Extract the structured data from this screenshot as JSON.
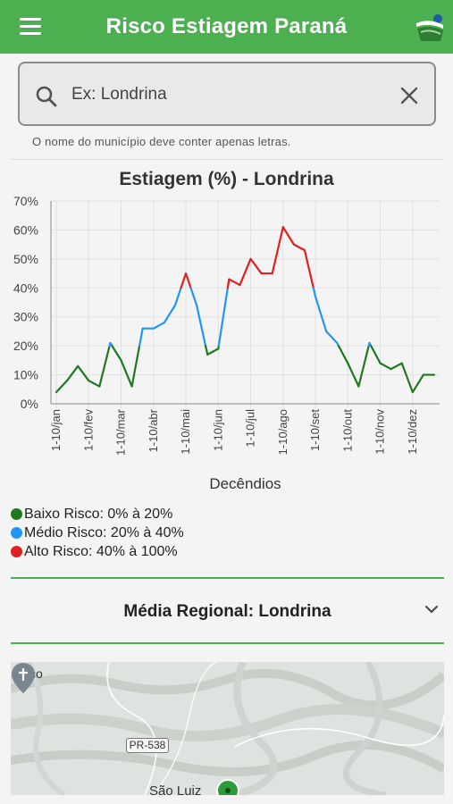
{
  "app": {
    "title": "Risco Estiagem Paraná"
  },
  "search": {
    "placeholder": "Ex: Londrina",
    "hint": "O nome do município deve conter apenas letras."
  },
  "chart_data": {
    "type": "line",
    "title": "Estiagem (%) - Londrina",
    "xlabel": "Decêndios",
    "ylabel": "",
    "ylim": [
      0,
      70
    ],
    "yticks": [
      "0%",
      "10%",
      "20%",
      "30%",
      "40%",
      "50%",
      "60%",
      "70%"
    ],
    "x_tick_labels": [
      "1-10/jan",
      "1-10/fev",
      "1-10/mar",
      "1-10/abr",
      "1-10/mai",
      "1-10/jun",
      "1-10/jul",
      "1-10/ago",
      "1-10/set",
      "1-10/out",
      "1-10/nov",
      "1-10/dez"
    ],
    "values": [
      4,
      8,
      13,
      8,
      6,
      21,
      15,
      6,
      26,
      26,
      28,
      34,
      45,
      34,
      17,
      19,
      43,
      41,
      50,
      45,
      45,
      61,
      55,
      53,
      37,
      25,
      21,
      14,
      6,
      21,
      14,
      12,
      14,
      4,
      10,
      10
    ],
    "risk_bands": [
      {
        "label": "Baixo Risco: 0% à 20%",
        "color": "#1f7a1f",
        "min": 0,
        "max": 20
      },
      {
        "label": "Médio Risco: 20% à 40%",
        "color": "#2196f3",
        "min": 20,
        "max": 40
      },
      {
        "label": "Alto Risco: 40% à 100%",
        "color": "#e02020",
        "min": 40,
        "max": 100
      }
    ],
    "grid": true
  },
  "accordion": {
    "title": "Média Regional: Londrina"
  },
  "map": {
    "city_label": "ıcisco",
    "road": "PR-538",
    "town": "São Luiz"
  }
}
